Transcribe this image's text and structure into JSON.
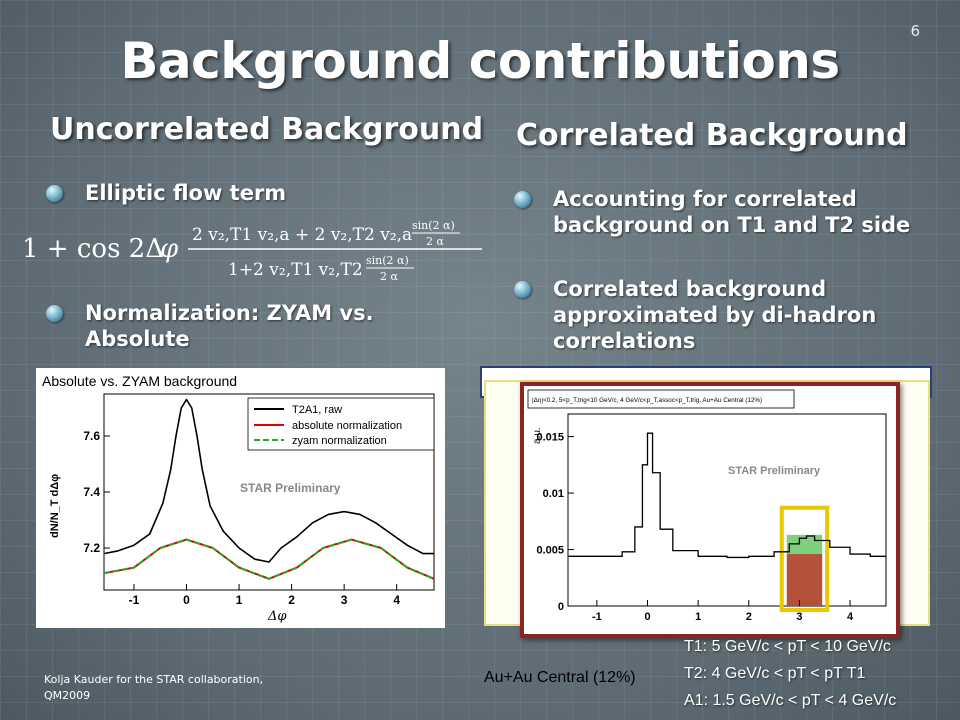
{
  "slide": {
    "number": "6",
    "title": "Background contributions"
  },
  "left": {
    "heading": "Uncorrelated Background",
    "bullets": [
      "Elliptic flow term",
      "Normalization: ZYAM vs. Absolute"
    ],
    "formula_label": "1 + cos 2Δφ (2 v2,T1 v2,a + 2 v2,T2 v2,a sin(2α)/2α) / (1 + 2 v2,T1 v2,T2 sin(2α)/2α)"
  },
  "right": {
    "heading": "Correlated Background",
    "bullets": [
      "Accounting for correlated background on T1 and T2 side",
      "Correlated background approximated by di-hadron correlations"
    ]
  },
  "plot_left": {
    "caption": "Absolute vs. ZYAM background",
    "legend": [
      "T2A1, raw",
      "absolute normalization",
      "zyam normalization"
    ],
    "watermark": "STAR Preliminary",
    "xlabel": "Δφ",
    "ylabel": "dN/N_T dΔφ",
    "colors": {
      "raw": "#000000",
      "absolute": "#e00000",
      "zyam": "#22aa22"
    }
  },
  "plot_right": {
    "header": "|Δη|<0.2, 5<p_T,trig<10 GeV/c, 4 GeV/c<p_T,assoc<p_T,trig, Au+Au Central (12%)",
    "watermark": "STAR Preliminary",
    "ylabel": "a.u.",
    "highlight_color": "#e8c800"
  },
  "panel_caption": "Au+Au Central (12%)",
  "kinematics": [
    "T1:    5 GeV/c < pT < 10 GeV/c",
    "T2:    4 GeV/c < pT < pT T1",
    "A1: 1.5 GeV/c < pT < 4 GeV/c"
  ],
  "footer": {
    "line1": "Kolja Kauder for the STAR collaboration,",
    "line2": "QM2009"
  },
  "chart_data": [
    {
      "type": "line",
      "title": "Absolute vs. ZYAM background",
      "xlabel": "Δφ",
      "ylabel": "dN/N_T dΔφ",
      "xlim": [
        -1.57,
        4.71
      ],
      "ylim": [
        7.05,
        7.75
      ],
      "xticks": [
        -1,
        0,
        1,
        2,
        3,
        4
      ],
      "yticks": [
        7.2,
        7.4,
        7.6
      ],
      "series": [
        {
          "name": "T2A1, raw",
          "x": [
            -1.57,
            -1.3,
            -1.0,
            -0.7,
            -0.45,
            -0.3,
            -0.2,
            -0.1,
            0.0,
            0.1,
            0.2,
            0.3,
            0.45,
            0.7,
            1.0,
            1.3,
            1.57,
            1.8,
            2.1,
            2.4,
            2.7,
            3.0,
            3.3,
            3.6,
            3.9,
            4.2,
            4.5,
            4.71
          ],
          "y": [
            7.18,
            7.19,
            7.21,
            7.25,
            7.36,
            7.48,
            7.6,
            7.7,
            7.73,
            7.7,
            7.6,
            7.48,
            7.35,
            7.26,
            7.2,
            7.16,
            7.15,
            7.2,
            7.24,
            7.29,
            7.32,
            7.33,
            7.32,
            7.29,
            7.25,
            7.21,
            7.18,
            7.18
          ]
        },
        {
          "name": "absolute normalization",
          "x": [
            -1.57,
            -1.0,
            -0.5,
            0.0,
            0.5,
            1.0,
            1.57,
            2.1,
            2.6,
            3.14,
            3.7,
            4.2,
            4.71
          ],
          "y": [
            7.11,
            7.13,
            7.2,
            7.23,
            7.2,
            7.13,
            7.09,
            7.13,
            7.2,
            7.23,
            7.2,
            7.13,
            7.09
          ]
        },
        {
          "name": "zyam normalization",
          "x": [
            -1.57,
            -1.0,
            -0.5,
            0.0,
            0.5,
            1.0,
            1.57,
            2.1,
            2.6,
            3.14,
            3.7,
            4.2,
            4.71
          ],
          "y": [
            7.11,
            7.13,
            7.2,
            7.23,
            7.2,
            7.13,
            7.09,
            7.13,
            7.2,
            7.23,
            7.2,
            7.13,
            7.09
          ]
        }
      ]
    },
    {
      "type": "line",
      "title": "|Δη|<0.2, 5<p_T,trig<10 GeV/c, 4 GeV/c<p_T,assoc<p_T,trig, Au+Au Central (12%)",
      "xlabel": "",
      "ylabel": "a.u.",
      "xlim": [
        -1.57,
        4.71
      ],
      "ylim": [
        0,
        0.017
      ],
      "xticks": [
        -1,
        0,
        1,
        2,
        3,
        4
      ],
      "yticks": [
        0,
        0.005,
        0.01,
        0.015
      ],
      "series": [
        {
          "name": "",
          "x": [
            -1.57,
            -1.0,
            -0.5,
            -0.25,
            -0.1,
            0.0,
            0.1,
            0.25,
            0.5,
            1.0,
            1.57,
            2.0,
            2.5,
            2.8,
            3.0,
            3.14,
            3.3,
            3.6,
            4.0,
            4.4,
            4.71
          ],
          "y": [
            0.0044,
            0.0044,
            0.0048,
            0.007,
            0.0125,
            0.0153,
            0.0118,
            0.0068,
            0.0049,
            0.0044,
            0.0043,
            0.0044,
            0.0048,
            0.0055,
            0.006,
            0.0062,
            0.0058,
            0.0052,
            0.0046,
            0.0044,
            0.0044
          ]
        }
      ]
    }
  ]
}
